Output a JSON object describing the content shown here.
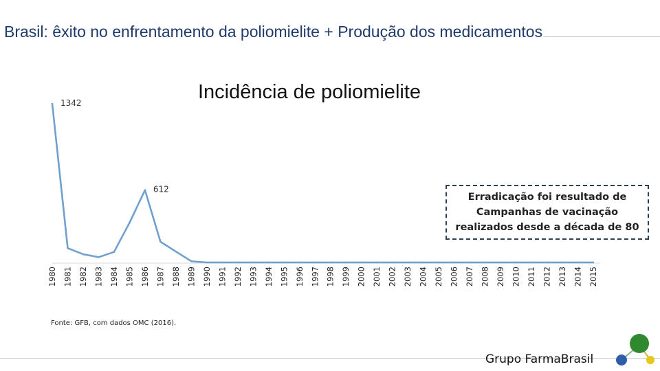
{
  "slide": {
    "title": "Brasil: êxito no enfrentamento da poliomielite + Produção dos medicamentos"
  },
  "chart_data": {
    "type": "line",
    "title": "Incidência de poliomielite",
    "x": [
      "1980",
      "1981",
      "1982",
      "1983",
      "1984",
      "1985",
      "1986",
      "1987",
      "1988",
      "1989",
      "1990",
      "1991",
      "1992",
      "1993",
      "1994",
      "1995",
      "1996",
      "1997",
      "1998",
      "1999",
      "2000",
      "2001",
      "2002",
      "2003",
      "2004",
      "2005",
      "2006",
      "2007",
      "2008",
      "2009",
      "2010",
      "2011",
      "2012",
      "2013",
      "2014",
      "2015"
    ],
    "values": [
      1342,
      121,
      69,
      45,
      89,
      336,
      612,
      175,
      92,
      10,
      0,
      0,
      0,
      0,
      0,
      0,
      0,
      0,
      0,
      0,
      0,
      0,
      0,
      0,
      0,
      0,
      0,
      0,
      0,
      0,
      0,
      0,
      0,
      0,
      0,
      0
    ],
    "data_labels": [
      {
        "index": 0,
        "text": "1342"
      },
      {
        "index": 6,
        "text": "612"
      }
    ],
    "ylim": [
      0,
      1342
    ],
    "grid": false,
    "line_color": "#6fa0cf"
  },
  "callout": {
    "lines": [
      "Erradicação foi resultado de",
      "Campanhas de vacinação",
      "realizados desde a década de 80"
    ]
  },
  "source": "Fonte: GFB, com dados OMC (2016).",
  "brand": {
    "name": "Grupo FarmaBrasil",
    "colors": {
      "green": "#2f8a2f",
      "blue": "#2f5fa8",
      "yellow": "#e8c81a"
    }
  }
}
